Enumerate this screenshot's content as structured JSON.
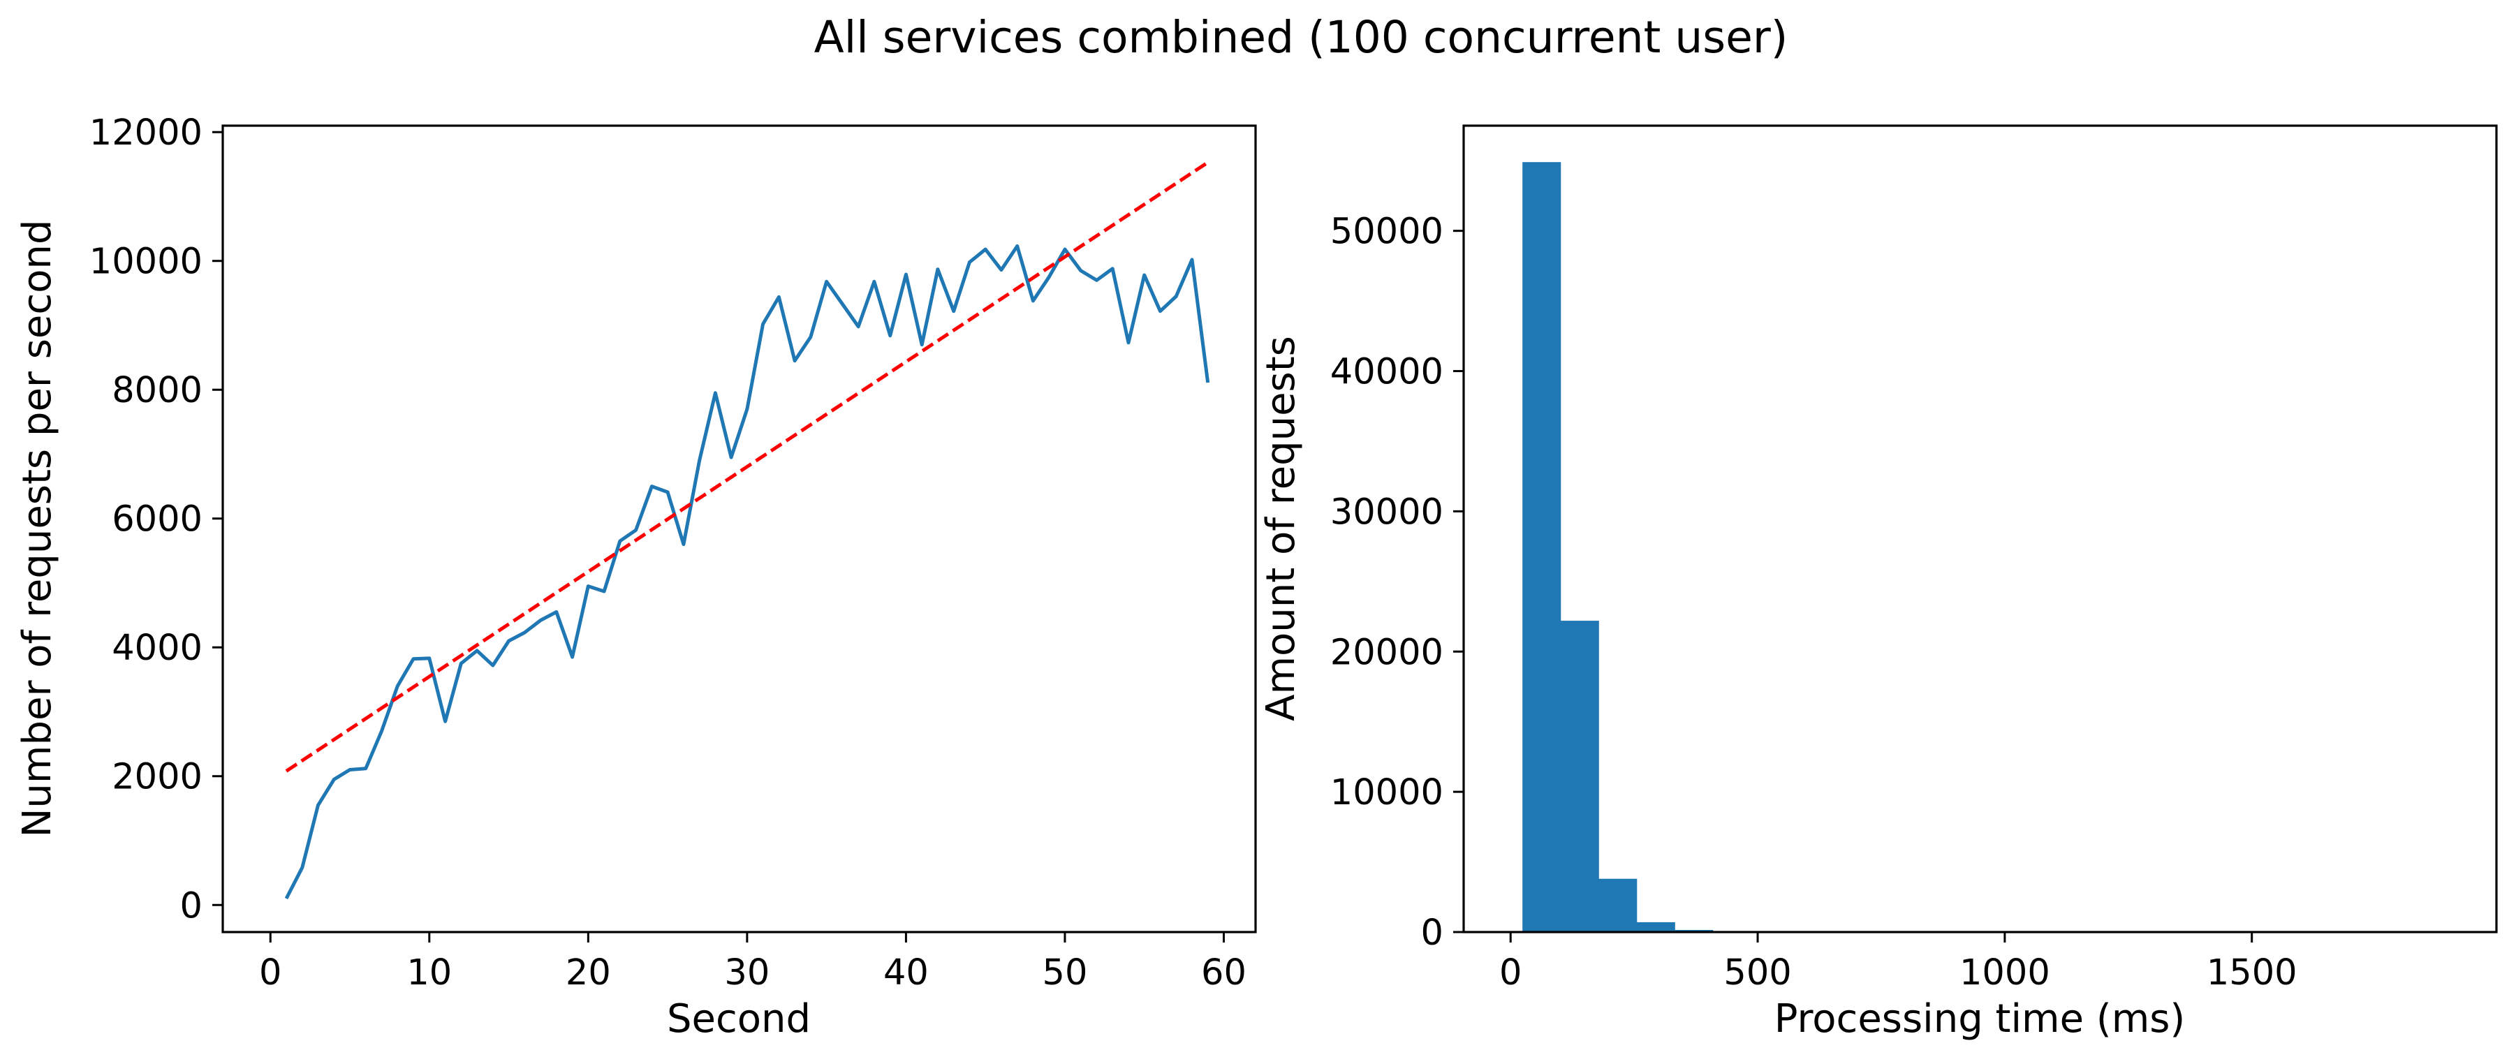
{
  "figure": {
    "title": "All services combined (100 concurrent user)"
  },
  "colors": {
    "line": "#1f77b4",
    "trend": "#ff0000",
    "bars": "#1f77b4",
    "axes": "#000000",
    "background": "#ffffff"
  },
  "chart_data": [
    {
      "type": "line",
      "title": "",
      "xlabel": "Second",
      "ylabel": "Number of requests per second",
      "xlim": [
        -3,
        62
      ],
      "ylim": [
        -420,
        12100
      ],
      "xticks": [
        0,
        10,
        20,
        30,
        40,
        50,
        60
      ],
      "yticks": [
        0,
        2000,
        4000,
        6000,
        8000,
        10000,
        12000
      ],
      "grid": false,
      "legend": "none",
      "series": [
        {
          "style": "solid",
          "color": "#1f77b4",
          "x": [
            1,
            2,
            3,
            4,
            5,
            6,
            7,
            8,
            9,
            10,
            11,
            12,
            13,
            14,
            15,
            16,
            17,
            18,
            19,
            20,
            21,
            22,
            23,
            24,
            25,
            26,
            27,
            28,
            29,
            30,
            31,
            32,
            33,
            34,
            35,
            36,
            37,
            38,
            39,
            40,
            41,
            42,
            43,
            44,
            45,
            46,
            47,
            48,
            49,
            50,
            51,
            52,
            53,
            54,
            55,
            56,
            57,
            58,
            59
          ],
          "y": [
            100,
            580,
            1550,
            1950,
            2100,
            2120,
            2700,
            3400,
            3820,
            3830,
            2850,
            3750,
            3950,
            3720,
            4100,
            4230,
            4420,
            4550,
            3850,
            4950,
            4870,
            5650,
            5820,
            6500,
            6410,
            5600,
            6900,
            7950,
            6950,
            7700,
            9020,
            9440,
            8450,
            8820,
            9680,
            9330,
            8980,
            9680,
            8840,
            9790,
            8700,
            9870,
            9220,
            9980,
            10180,
            9860,
            10230,
            9380,
            9750,
            10180,
            9850,
            9700,
            9880,
            8730,
            9780,
            9220,
            9450,
            10020,
            8110
          ]
        },
        {
          "style": "dashed",
          "color": "#ff0000",
          "x": [
            1,
            59
          ],
          "y": [
            2080,
            11530
          ]
        }
      ]
    },
    {
      "type": "bar",
      "subtype": "histogram",
      "title": "",
      "xlabel": "Processing time (ms)",
      "ylabel": "Amount of requests",
      "xlim": [
        -95,
        1995
      ],
      "ylim": [
        0,
        57500
      ],
      "xticks": [
        0,
        500,
        1000,
        1500
      ],
      "yticks": [
        0,
        10000,
        20000,
        30000,
        40000,
        50000
      ],
      "grid": false,
      "legend": "none",
      "bin_edges": [
        24,
        101,
        178,
        255,
        332,
        409,
        486,
        563,
        640,
        717,
        794,
        871,
        948,
        1025,
        1102,
        1179,
        1256,
        1333,
        1410,
        1487,
        1564,
        1641,
        1718,
        1795,
        1872
      ],
      "values": [
        54900,
        22200,
        3800,
        700,
        150,
        50,
        20,
        10,
        5,
        3,
        2,
        1,
        1,
        1,
        0,
        0,
        0,
        0,
        0,
        0,
        0,
        0,
        0,
        0
      ]
    }
  ]
}
